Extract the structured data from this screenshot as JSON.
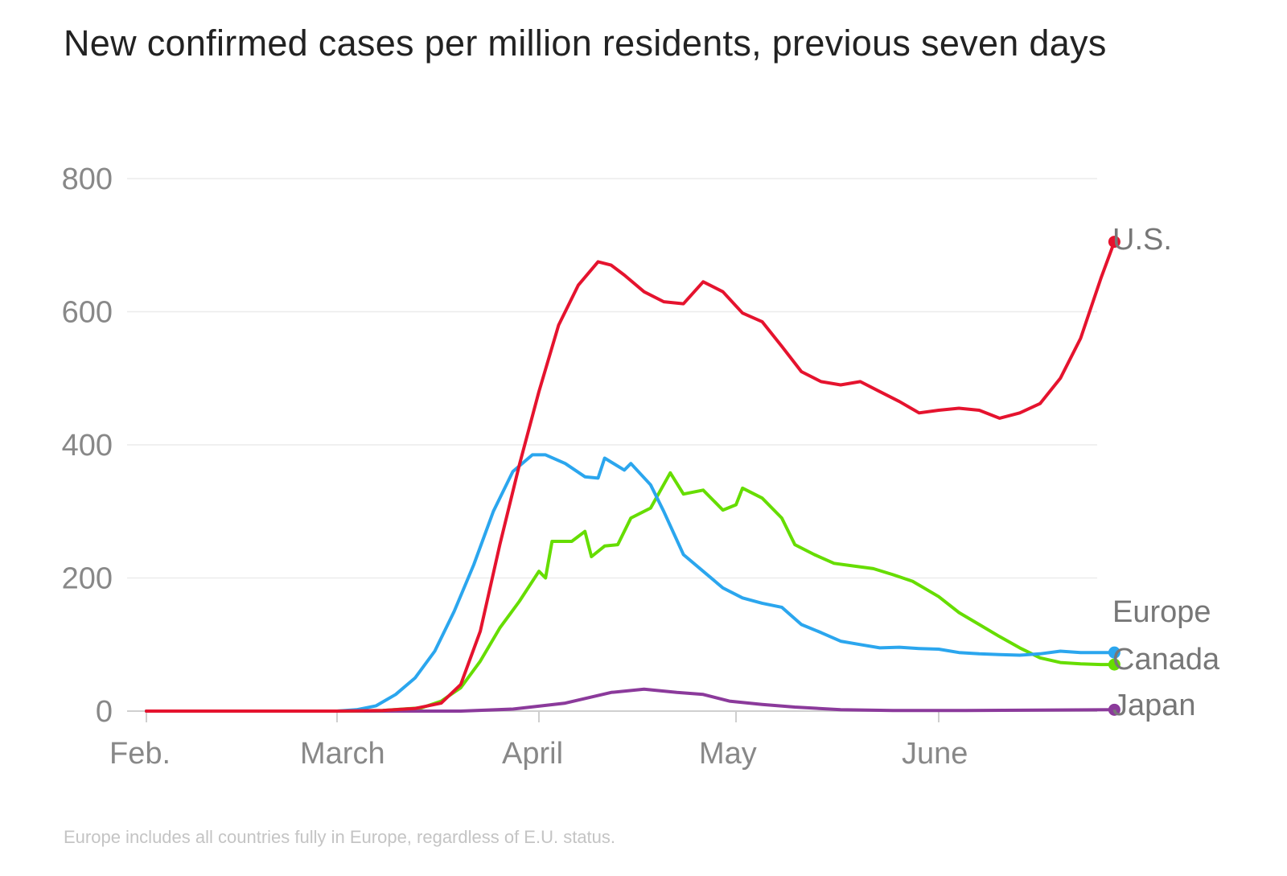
{
  "chart_data": {
    "type": "line",
    "title": "New confirmed cases per million residents, previous seven days",
    "note": "Europe includes all countries fully in Europe, regardless of E.U. status.",
    "xlabel": "",
    "ylabel": "",
    "x_ticks": [
      "Feb.",
      "March",
      "April",
      "May",
      "June"
    ],
    "y_ticks": [
      0,
      200,
      400,
      600,
      800
    ],
    "ylim": [
      0,
      800
    ],
    "grid": true,
    "legend": "inline labels at line ends (right)",
    "colors": {
      "U.S.": "#e5132e",
      "Europe": "#2ba6ee",
      "Canada": "#66dd00",
      "Japan": "#8b3a9b",
      "grid": "#ececec",
      "axis": "#cfcfcf"
    },
    "series": [
      {
        "name": "U.S.",
        "color": "#e5132e",
        "points": [
          [
            "2020-02-01",
            0
          ],
          [
            "2020-03-01",
            0
          ],
          [
            "2020-03-08",
            1
          ],
          [
            "2020-03-13",
            4
          ],
          [
            "2020-03-17",
            12
          ],
          [
            "2020-03-20",
            40
          ],
          [
            "2020-03-23",
            120
          ],
          [
            "2020-03-26",
            250
          ],
          [
            "2020-03-29",
            370
          ],
          [
            "2020-04-01",
            480
          ],
          [
            "2020-04-04",
            580
          ],
          [
            "2020-04-07",
            640
          ],
          [
            "2020-04-10",
            675
          ],
          [
            "2020-04-12",
            670
          ],
          [
            "2020-04-14",
            655
          ],
          [
            "2020-04-17",
            630
          ],
          [
            "2020-04-20",
            615
          ],
          [
            "2020-04-23",
            612
          ],
          [
            "2020-04-26",
            645
          ],
          [
            "2020-04-29",
            630
          ],
          [
            "2020-05-02",
            598
          ],
          [
            "2020-05-05",
            585
          ],
          [
            "2020-05-08",
            548
          ],
          [
            "2020-05-11",
            510
          ],
          [
            "2020-05-14",
            495
          ],
          [
            "2020-05-17",
            490
          ],
          [
            "2020-05-20",
            495
          ],
          [
            "2020-05-23",
            480
          ],
          [
            "2020-05-26",
            465
          ],
          [
            "2020-05-29",
            448
          ],
          [
            "2020-06-01",
            452
          ],
          [
            "2020-06-04",
            455
          ],
          [
            "2020-06-07",
            452
          ],
          [
            "2020-06-10",
            440
          ],
          [
            "2020-06-13",
            448
          ],
          [
            "2020-06-16",
            462
          ],
          [
            "2020-06-19",
            500
          ],
          [
            "2020-06-22",
            560
          ],
          [
            "2020-06-25",
            650
          ],
          [
            "2020-06-27",
            705
          ]
        ]
      },
      {
        "name": "Europe",
        "color": "#2ba6ee",
        "points": [
          [
            "2020-02-01",
            0
          ],
          [
            "2020-03-01",
            0
          ],
          [
            "2020-03-04",
            2
          ],
          [
            "2020-03-07",
            8
          ],
          [
            "2020-03-10",
            25
          ],
          [
            "2020-03-13",
            50
          ],
          [
            "2020-03-16",
            90
          ],
          [
            "2020-03-19",
            150
          ],
          [
            "2020-03-22",
            220
          ],
          [
            "2020-03-25",
            300
          ],
          [
            "2020-03-28",
            360
          ],
          [
            "2020-03-31",
            385
          ],
          [
            "2020-04-02",
            385
          ],
          [
            "2020-04-05",
            372
          ],
          [
            "2020-04-08",
            352
          ],
          [
            "2020-04-10",
            350
          ],
          [
            "2020-04-11",
            380
          ],
          [
            "2020-04-14",
            362
          ],
          [
            "2020-04-15",
            372
          ],
          [
            "2020-04-18",
            340
          ],
          [
            "2020-04-20",
            300
          ],
          [
            "2020-04-23",
            235
          ],
          [
            "2020-04-26",
            210
          ],
          [
            "2020-04-29",
            185
          ],
          [
            "2020-05-02",
            170
          ],
          [
            "2020-05-05",
            162
          ],
          [
            "2020-05-08",
            156
          ],
          [
            "2020-05-11",
            130
          ],
          [
            "2020-05-14",
            118
          ],
          [
            "2020-05-17",
            105
          ],
          [
            "2020-05-20",
            100
          ],
          [
            "2020-05-23",
            95
          ],
          [
            "2020-05-26",
            96
          ],
          [
            "2020-05-29",
            94
          ],
          [
            "2020-06-01",
            93
          ],
          [
            "2020-06-04",
            88
          ],
          [
            "2020-06-07",
            86
          ],
          [
            "2020-06-10",
            85
          ],
          [
            "2020-06-13",
            84
          ],
          [
            "2020-06-16",
            86
          ],
          [
            "2020-06-19",
            90
          ],
          [
            "2020-06-22",
            88
          ],
          [
            "2020-06-25",
            88
          ],
          [
            "2020-06-27",
            88
          ]
        ]
      },
      {
        "name": "Canada",
        "color": "#66dd00",
        "points": [
          [
            "2020-02-01",
            0
          ],
          [
            "2020-03-01",
            0
          ],
          [
            "2020-03-08",
            1
          ],
          [
            "2020-03-14",
            5
          ],
          [
            "2020-03-17",
            15
          ],
          [
            "2020-03-20",
            35
          ],
          [
            "2020-03-23",
            75
          ],
          [
            "2020-03-26",
            125
          ],
          [
            "2020-03-29",
            165
          ],
          [
            "2020-04-01",
            210
          ],
          [
            "2020-04-02",
            200
          ],
          [
            "2020-04-03",
            255
          ],
          [
            "2020-04-06",
            255
          ],
          [
            "2020-04-08",
            270
          ],
          [
            "2020-04-09",
            232
          ],
          [
            "2020-04-11",
            248
          ],
          [
            "2020-04-13",
            250
          ],
          [
            "2020-04-15",
            290
          ],
          [
            "2020-04-18",
            305
          ],
          [
            "2020-04-21",
            358
          ],
          [
            "2020-04-23",
            326
          ],
          [
            "2020-04-26",
            332
          ],
          [
            "2020-04-29",
            302
          ],
          [
            "2020-05-01",
            310
          ],
          [
            "2020-05-02",
            335
          ],
          [
            "2020-05-05",
            320
          ],
          [
            "2020-05-08",
            290
          ],
          [
            "2020-05-10",
            250
          ],
          [
            "2020-05-13",
            235
          ],
          [
            "2020-05-16",
            222
          ],
          [
            "2020-05-19",
            218
          ],
          [
            "2020-05-22",
            214
          ],
          [
            "2020-05-25",
            205
          ],
          [
            "2020-05-28",
            195
          ],
          [
            "2020-06-01",
            172
          ],
          [
            "2020-06-04",
            148
          ],
          [
            "2020-06-07",
            130
          ],
          [
            "2020-06-10",
            112
          ],
          [
            "2020-06-13",
            95
          ],
          [
            "2020-06-16",
            80
          ],
          [
            "2020-06-19",
            73
          ],
          [
            "2020-06-22",
            71
          ],
          [
            "2020-06-25",
            70
          ],
          [
            "2020-06-27",
            70
          ]
        ]
      },
      {
        "name": "Japan",
        "color": "#8b3a9b",
        "points": [
          [
            "2020-02-01",
            0
          ],
          [
            "2020-03-20",
            0
          ],
          [
            "2020-03-28",
            3
          ],
          [
            "2020-04-05",
            12
          ],
          [
            "2020-04-12",
            28
          ],
          [
            "2020-04-17",
            33
          ],
          [
            "2020-04-22",
            28
          ],
          [
            "2020-04-26",
            25
          ],
          [
            "2020-04-30",
            15
          ],
          [
            "2020-05-05",
            10
          ],
          [
            "2020-05-10",
            6
          ],
          [
            "2020-05-17",
            2
          ],
          [
            "2020-05-25",
            1
          ],
          [
            "2020-06-05",
            1
          ],
          [
            "2020-06-27",
            2
          ]
        ]
      }
    ]
  }
}
